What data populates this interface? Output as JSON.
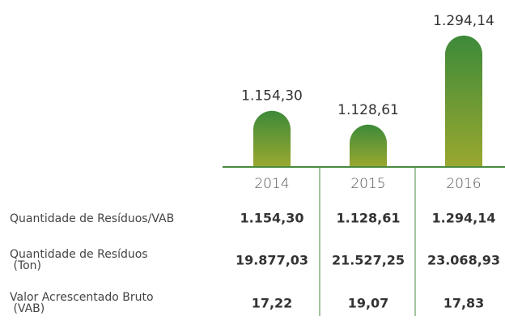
{
  "chart_data": {
    "type": "bar",
    "categories": [
      "2014",
      "2015",
      "2016"
    ],
    "values": [
      1154.3,
      1128.61,
      1294.14
    ],
    "value_labels": [
      "1.154,30",
      "1.128,61",
      "1.294,14"
    ],
    "ylim": [
      1050,
      1300
    ],
    "table": {
      "rows": [
        {
          "label": "Quantidade de Resíduos/VAB",
          "cells": [
            "1.154,30",
            "1.128,61",
            "1.294,14"
          ]
        },
        {
          "label": "Quantidade de Resíduos (Ton)",
          "cells": [
            "19.877,03",
            "21.527,25",
            "23.068,93"
          ]
        },
        {
          "label": "Valor Acrescentado Bruto (VAB)",
          "cells": [
            "17,22",
            "19,07",
            "17,83"
          ]
        }
      ]
    }
  }
}
